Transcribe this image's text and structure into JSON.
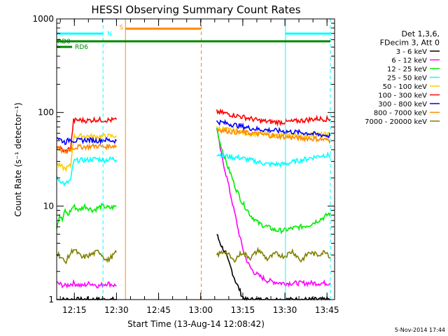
{
  "chart_data": {
    "type": "line",
    "title": "HESSI Observing Summary Count Rates",
    "xlabel": "Start Time (13-Aug-14 12:08:42)",
    "ylabel": "Count Rate (s⁻¹ detector⁻¹)",
    "yscale": "log",
    "ylim": [
      1,
      1000
    ],
    "xlim_minutes": [
      0,
      99
    ],
    "x_ticks": [
      {
        "label": "12:15",
        "minute": 6.3
      },
      {
        "label": "12:30",
        "minute": 21.3
      },
      {
        "label": "12:45",
        "minute": 36.3
      },
      {
        "label": "13:00",
        "minute": 51.3
      },
      {
        "label": "13:15",
        "minute": 66.3
      },
      {
        "label": "13:30",
        "minute": 81.3
      },
      {
        "label": "13:45",
        "minute": 96.3
      }
    ],
    "y_ticks": [
      {
        "label": "1",
        "value": 1
      },
      {
        "label": "10",
        "value": 10
      },
      {
        "label": "100",
        "value": 100
      },
      {
        "label": "1000",
        "value": 1000
      }
    ],
    "legend": {
      "header": [
        "Det 1,3,6,",
        "FDecim 3, Att 0"
      ],
      "placement": "right"
    },
    "series": [
      {
        "name": "3 - 6 keV",
        "color": "#000000",
        "segments": [
          {
            "t": [
              0,
              1,
              3,
              5,
              8,
              11,
              14,
              17,
              20,
              21.3
            ],
            "v": [
              1,
              1,
              1,
              1,
              1,
              1,
              1,
              1,
              1,
              1
            ]
          },
          {
            "t": [
              57,
              58,
              59,
              60,
              61,
              62,
              63,
              64,
              65,
              66,
              67,
              69,
              72,
              76,
              80,
              84,
              88,
              92,
              96,
              97.5
            ],
            "v": [
              5,
              4.2,
              3.6,
              3.2,
              2.6,
              2.2,
              1.8,
              1.5,
              1.3,
              1.1,
              1,
              1,
              1,
              1,
              1,
              1,
              1,
              1,
              1,
              1
            ]
          }
        ]
      },
      {
        "name": "6 - 12 keV",
        "color": "#ff00ff",
        "segments": [
          {
            "t": [
              0,
              3,
              6,
              9,
              12,
              15,
              18,
              21.3
            ],
            "v": [
              1.5,
              1.4,
              1.5,
              1.4,
              1.5,
              1.4,
              1.5,
              1.4
            ]
          },
          {
            "t": [
              57,
              58,
              59,
              60,
              61,
              62,
              63,
              64,
              65,
              66,
              67,
              68,
              69,
              70,
              72,
              75,
              80,
              85,
              90,
              95,
              97.5
            ],
            "v": [
              70,
              45,
              32,
              24,
              18,
              13,
              9.5,
              7,
              5,
              3.8,
              3,
              2.5,
              2.2,
              2,
              1.8,
              1.6,
              1.5,
              1.5,
              1.5,
              1.5,
              1.5
            ]
          }
        ]
      },
      {
        "name": "12 - 25 keV",
        "color": "#00ee00",
        "segments": [
          {
            "t": [
              0,
              1,
              2,
              3,
              4,
              5,
              6,
              8,
              10,
              13,
              16,
              19,
              21.3
            ],
            "v": [
              6,
              8,
              7,
              9,
              8,
              9,
              10,
              9,
              10,
              9,
              10,
              9.5,
              10
            ]
          },
          {
            "t": [
              57,
              58,
              59,
              60,
              61,
              62,
              63,
              64,
              65,
              66,
              67,
              68,
              69,
              70,
              72,
              75,
              78,
              81,
              84,
              87,
              90,
              93,
              95,
              97.5
            ],
            "v": [
              70,
              50,
              40,
              32,
              26,
              22,
              18,
              15,
              13,
              11,
              10,
              9,
              8,
              7.5,
              6.5,
              6,
              5.5,
              5.5,
              5.8,
              6,
              6.3,
              7,
              7.5,
              8.5
            ]
          }
        ]
      },
      {
        "name": "25 - 50 keV",
        "color": "#00ffff",
        "segments": [
          {
            "t": [
              0,
              1,
              2,
              3,
              4,
              5,
              6,
              8,
              11,
              14,
              17,
              20,
              21.3
            ],
            "v": [
              20,
              19,
              18,
              17,
              18,
              19,
              30,
              31,
              31,
              32,
              31,
              32,
              31
            ]
          },
          {
            "t": [
              57,
              59,
              61,
              63,
              65,
              67,
              69,
              71,
              73,
              75,
              77,
              79,
              81,
              83,
              85,
              87,
              89,
              91,
              93,
              95,
              97.5
            ],
            "v": [
              36,
              35,
              34,
              33,
              33,
              32,
              31,
              30,
              29,
              28,
              28,
              28,
              28,
              29,
              30,
              31,
              32,
              33,
              34,
              35,
              35
            ]
          }
        ]
      },
      {
        "name": "50 - 100 keV",
        "color": "#ffcc00",
        "segments": [
          {
            "t": [
              0,
              1,
              2,
              3,
              4,
              5,
              6,
              8,
              11,
              14,
              17,
              20,
              21.3
            ],
            "v": [
              28,
              27,
              26,
              25,
              26,
              27,
              55,
              56,
              56,
              55,
              56,
              56,
              56
            ]
          },
          {
            "t": [
              57,
              60,
              63,
              66,
              69,
              72,
              75,
              78,
              81,
              84,
              87,
              90,
              93,
              96,
              97.5
            ],
            "v": [
              68,
              66,
              64,
              62,
              60,
              59,
              58,
              57,
              57,
              57,
              57,
              57,
              58,
              58,
              58
            ]
          }
        ]
      },
      {
        "name": "100 - 300 keV",
        "color": "#ff0000",
        "segments": [
          {
            "t": [
              0,
              1,
              2,
              3,
              4,
              5,
              6,
              8,
              11,
              14,
              17,
              20,
              21.3
            ],
            "v": [
              45,
              42,
              40,
              38,
              40,
              42,
              82,
              83,
              82,
              84,
              83,
              83,
              84
            ]
          },
          {
            "t": [
              57,
              60,
              63,
              66,
              69,
              72,
              75,
              78,
              81,
              84,
              87,
              90,
              93,
              96,
              97.5
            ],
            "v": [
              102,
              98,
              94,
              90,
              86,
              82,
              80,
              79,
              79,
              80,
              82,
              84,
              86,
              85,
              85
            ]
          }
        ]
      },
      {
        "name": "300 - 800 keV",
        "color": "#0000ff",
        "segments": [
          {
            "t": [
              0,
              1,
              2,
              3,
              4,
              5,
              6,
              8,
              11,
              14,
              17,
              20,
              21.3
            ],
            "v": [
              55,
              52,
              50,
              48,
              50,
              52,
              50,
              50,
              51,
              50,
              51,
              50,
              50
            ]
          },
          {
            "t": [
              57,
              60,
              63,
              66,
              69,
              72,
              75,
              78,
              81,
              84,
              87,
              90,
              93,
              96,
              97.5
            ],
            "v": [
              80,
              77,
              74,
              71,
              68,
              66,
              65,
              64,
              63,
              62,
              61,
              60,
              58,
              57,
              56
            ]
          }
        ]
      },
      {
        "name": "800 - 7000 keV",
        "color": "#ff8800",
        "segments": [
          {
            "t": [
              0,
              1,
              2,
              3,
              4,
              5,
              6,
              8,
              11,
              14,
              17,
              20,
              21.3
            ],
            "v": [
              42,
              40,
              39,
              38,
              40,
              41,
              42,
              43,
              43,
              44,
              43,
              44,
              44
            ]
          },
          {
            "t": [
              57,
              60,
              63,
              66,
              69,
              72,
              75,
              78,
              81,
              84,
              87,
              90,
              93,
              96,
              97.5
            ],
            "v": [
              66,
              64,
              62,
              61,
              60,
              59,
              57,
              56,
              55,
              54,
              53,
              53,
              52,
              51,
              50
            ]
          }
        ]
      },
      {
        "name": "7000 - 20000 keV",
        "color": "#808000",
        "segments": [
          {
            "t": [
              0,
              3,
              6,
              9,
              12,
              15,
              18,
              21.3
            ],
            "v": [
              3.2,
              2.5,
              3.5,
              2.8,
              3,
              3.3,
              2.6,
              3.2
            ]
          },
          {
            "t": [
              57,
              60,
              63,
              66,
              69,
              72,
              75,
              78,
              81,
              84,
              87,
              90,
              93,
              96,
              97.5
            ],
            "v": [
              3,
              3.3,
              2.6,
              3.2,
              2.8,
              3.4,
              2.7,
              3.1,
              2.9,
              3.3,
              2.6,
              3.2,
              3,
              3.3,
              2.8
            ]
          }
        ]
      }
    ],
    "status_bars": [
      {
        "label": "N",
        "color": "#00ffff",
        "row": 1,
        "ranges": [
          [
            0,
            16.5
          ],
          [
            81.5,
            97.5
          ]
        ]
      },
      {
        "label": "S",
        "color": "#ff8800",
        "row": 0,
        "ranges": [
          [
            24.5,
            51.5
          ]
        ]
      },
      {
        "label": "RD0",
        "color": "#008800",
        "row": 2,
        "ranges": [
          [
            0,
            97.5
          ]
        ]
      },
      {
        "label": "RD6",
        "color": "#008800",
        "row": 3,
        "ranges": [
          [
            0,
            5.5
          ]
        ]
      }
    ],
    "vlines": [
      {
        "minute": 16.5,
        "color": "#00ffff",
        "style": "dashed"
      },
      {
        "minute": 24.5,
        "color": "#ff8800",
        "style": "solid"
      },
      {
        "minute": 51.5,
        "color": "#ff8800",
        "style": "dashed"
      },
      {
        "minute": 81.5,
        "color": "#00ffff",
        "style": "solid"
      },
      {
        "minute": 97.5,
        "color": "#00ffff",
        "style": "dashed"
      }
    ],
    "grid": false
  },
  "timestamp": "5-Nov-2014 17:44"
}
